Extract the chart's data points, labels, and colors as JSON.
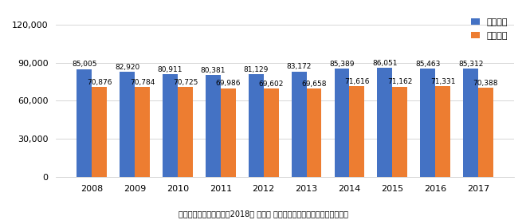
{
  "years": [
    "2008",
    "2009",
    "2010",
    "2011",
    "2012",
    "2013",
    "2014",
    "2015",
    "2016",
    "2017"
  ],
  "shinchiku": [
    85005,
    82920,
    80911,
    80381,
    81129,
    83172,
    85389,
    86051,
    85463,
    85312
  ],
  "chuko": [
    70876,
    70784,
    70725,
    69986,
    69602,
    69658,
    71616,
    71162,
    71331,
    70388
  ],
  "shinchiku_color": "#4472C4",
  "chuko_color": "#ED7D31",
  "legend_shinchiku": "新築賃料",
  "legend_chuko": "中古賃料",
  "yticks": [
    0,
    30000,
    60000,
    90000,
    120000
  ],
  "ylim": [
    0,
    130000
  ],
  "footnote": "（出所）東京カンテイ　2018年 首都圈 ワンルームマンション市况レポート",
  "bar_width": 0.35,
  "label_fontsize": 6.5,
  "tick_fontsize": 8,
  "legend_fontsize": 8,
  "footnote_fontsize": 7
}
